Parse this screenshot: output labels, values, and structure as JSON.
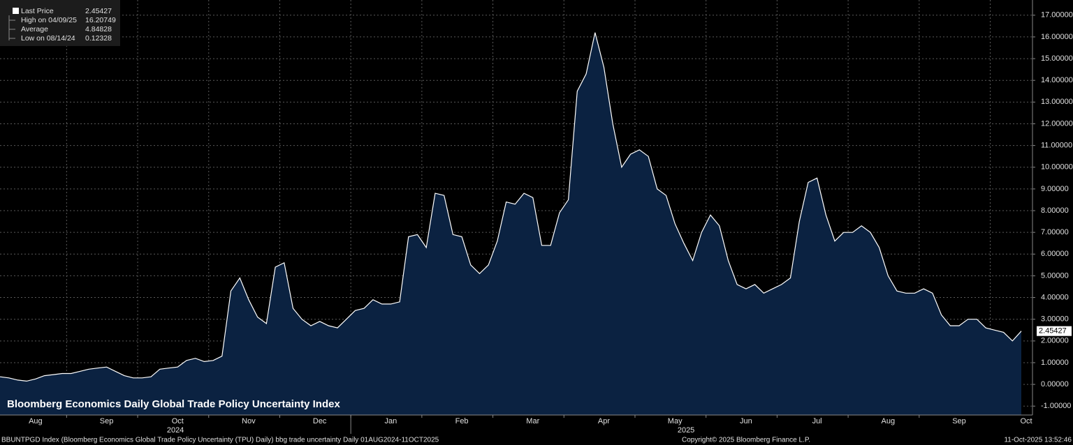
{
  "chart_data": {
    "type": "line",
    "title": "Bloomberg Economics Daily Global Trade Policy Uncertainty Index",
    "footer": "BBUNTPGD Index (Bloomberg Economics Global Trade Policy Uncertainty (TPU) Daily) bbg trade uncertainty Daily 01AUG2024-11OCT2025",
    "copyright": "Copyright© 2025 Bloomberg Finance L.P.",
    "timestamp": "11-Oct-2025 13:52:46",
    "legend_stats": [
      {
        "label": "Last Price",
        "value": 2.45427
      },
      {
        "label": "High on 04/09/25",
        "value": 16.20749
      },
      {
        "label": "Average",
        "value": 4.84828
      },
      {
        "label": "Low on 08/14/24",
        "value": 0.12328
      }
    ],
    "years": [
      "2024",
      "2025"
    ],
    "categories": [
      null,
      null,
      null,
      null,
      "Aug",
      null,
      null,
      null,
      null,
      null,
      null,
      null,
      "Sep",
      null,
      null,
      null,
      null,
      null,
      null,
      null,
      "Oct",
      null,
      null,
      null,
      null,
      null,
      null,
      null,
      "Nov",
      null,
      null,
      null,
      null,
      null,
      null,
      null,
      "Dec",
      null,
      null,
      null,
      null,
      null,
      null,
      null,
      "Jan",
      null,
      null,
      null,
      null,
      null,
      null,
      null,
      "Feb",
      null,
      null,
      null,
      null,
      null,
      null,
      null,
      "Mar",
      null,
      null,
      null,
      null,
      null,
      null,
      null,
      "Apr",
      null,
      null,
      null,
      null,
      null,
      null,
      null,
      "May",
      null,
      null,
      null,
      null,
      null,
      null,
      null,
      "Jun",
      null,
      null,
      null,
      null,
      null,
      null,
      null,
      "Jul",
      null,
      null,
      null,
      null,
      null,
      null,
      null,
      "Aug",
      null,
      null,
      null,
      null,
      null,
      null,
      null,
      "Sep",
      null,
      null,
      null,
      null,
      null,
      null,
      "Oct"
    ],
    "series": [
      {
        "name": "Last Price",
        "color": "#ffffff",
        "fill": "#0b2241",
        "values": [
          0.35,
          0.3,
          0.2,
          0.15,
          0.25,
          0.4,
          0.45,
          0.5,
          0.5,
          0.6,
          0.7,
          0.75,
          0.8,
          0.6,
          0.4,
          0.3,
          0.3,
          0.35,
          0.7,
          0.75,
          0.8,
          1.1,
          1.2,
          1.05,
          1.1,
          1.3,
          4.3,
          4.9,
          3.9,
          3.1,
          2.8,
          5.4,
          5.6,
          3.5,
          3.0,
          2.7,
          2.9,
          2.7,
          2.6,
          3.0,
          3.4,
          3.5,
          3.9,
          3.7,
          3.7,
          3.8,
          6.8,
          6.9,
          6.3,
          8.8,
          8.7,
          6.9,
          6.8,
          5.5,
          5.1,
          5.5,
          6.6,
          8.4,
          8.3,
          8.8,
          8.6,
          6.4,
          6.4,
          7.9,
          8.5,
          13.5,
          14.3,
          16.2,
          14.6,
          12.0,
          10.0,
          10.6,
          10.8,
          10.5,
          9.0,
          8.7,
          7.4,
          6.5,
          5.7,
          7.0,
          7.8,
          7.3,
          5.7,
          4.6,
          4.4,
          4.6,
          4.2,
          4.4,
          4.6,
          4.9,
          7.5,
          9.3,
          9.5,
          7.8,
          6.6,
          7.0,
          7.0,
          7.3,
          7.0,
          6.3,
          5.0,
          4.3,
          4.2,
          4.2,
          4.4,
          4.2,
          3.2,
          2.7,
          2.7,
          3.0,
          3.0,
          2.6,
          2.5,
          2.4,
          2.0,
          2.45427
        ]
      }
    ],
    "ylim": [
      -1.41,
      17.7
    ],
    "yticks": [
      {
        "value": -1,
        "label": "-1.00000"
      },
      {
        "value": 0,
        "label": "0.00000"
      },
      {
        "value": 1,
        "label": "1.00000"
      },
      {
        "value": 2,
        "label": "2.00000"
      },
      {
        "value": 3,
        "label": "3.00000"
      },
      {
        "value": 4,
        "label": "4.00000"
      },
      {
        "value": 5,
        "label": "5.00000"
      },
      {
        "value": 6,
        "label": "6.00000"
      },
      {
        "value": 7,
        "label": "7.00000"
      },
      {
        "value": 8,
        "label": "8.00000"
      },
      {
        "value": 9,
        "label": "9.00000"
      },
      {
        "value": 10,
        "label": "10.00000"
      },
      {
        "value": 11,
        "label": "11.00000"
      },
      {
        "value": 12,
        "label": "12.00000"
      },
      {
        "value": 13,
        "label": "13.00000"
      },
      {
        "value": 14,
        "label": "14.00000"
      },
      {
        "value": 15,
        "label": "15.00000"
      },
      {
        "value": 16,
        "label": "16.00000"
      },
      {
        "value": 17,
        "label": "17.00000"
      }
    ],
    "grid": true
  }
}
